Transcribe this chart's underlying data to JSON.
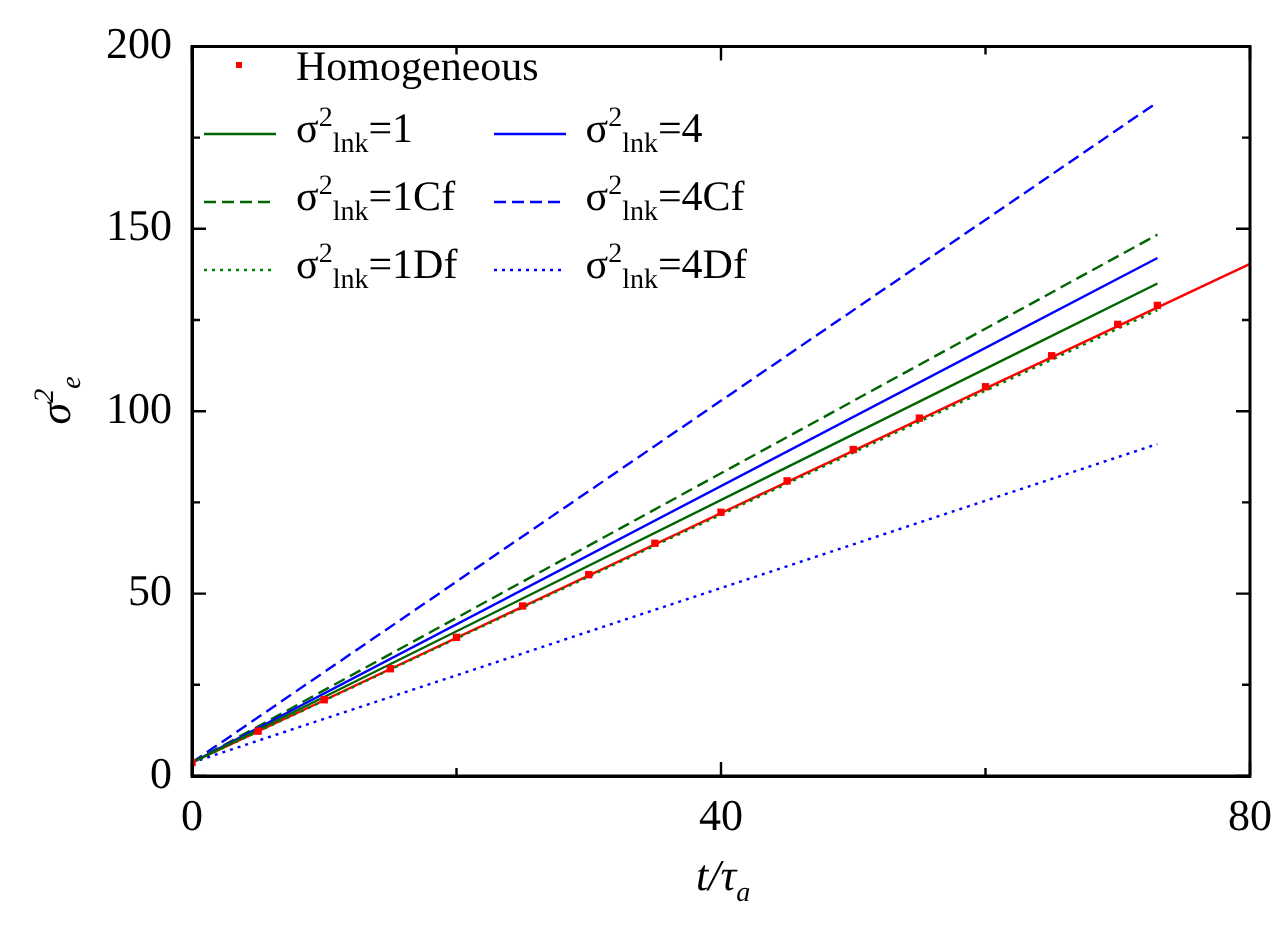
{
  "chart_data": {
    "type": "line",
    "xlabel": "t/τ$_{a}$",
    "ylabel": "σ$^{2}$$_{e}$",
    "xlim": [
      0,
      80
    ],
    "xticks": [
      0,
      {
        "value": 20,
        "label": null
      },
      40,
      {
        "value": 60,
        "label": null
      },
      80
    ],
    "ylim": [
      0,
      200
    ],
    "yticks": [
      0,
      {
        "value": 25,
        "label": null
      },
      50,
      {
        "value": 75,
        "label": null
      },
      100,
      {
        "value": 125,
        "label": null
      },
      150,
      {
        "value": 175,
        "label": null
      },
      200
    ],
    "grid": false,
    "legend": "top left",
    "series": [
      {
        "name": "Homogeneous",
        "type": "scatter",
        "marker": "square",
        "color": "#ff0000",
        "x": [
          0,
          5,
          10,
          15,
          20,
          25,
          30,
          35,
          40,
          45,
          50,
          55,
          60,
          65,
          70,
          73
        ],
        "values": [
          3.7,
          12.3,
          20.9,
          29.4,
          38,
          46.6,
          55.2,
          63.8,
          72.3,
          80.9,
          89.5,
          98.1,
          106.7,
          115.2,
          123.8,
          129
        ]
      },
      {
        "name": "σ$^{2}$$_{lnk}$=1",
        "color": "#006400",
        "line_style": "solid",
        "x": [
          0,
          73
        ],
        "values": [
          3.7,
          135
        ]
      },
      {
        "name": "σ$^{2}$$_{lnk}$=4",
        "color": "#0000ff",
        "line_style": "solid",
        "x": [
          0,
          73
        ],
        "values": [
          3.7,
          142
        ]
      },
      {
        "name": "σ$^{2}$$_{lnk}$=1Cf",
        "color": "#006400",
        "line_style": "dashed",
        "x": [
          0,
          73
        ],
        "values": [
          3.7,
          148.4
        ]
      },
      {
        "name": "σ$^{2}$$_{lnk}$=4Cf",
        "color": "#0000ff",
        "line_style": "dashed",
        "x": [
          0,
          73
        ],
        "values": [
          3.7,
          184.7
        ]
      },
      {
        "name": "σ$^{2}$$_{lnk}$=1Df",
        "color": "#008000",
        "line_style": "dotted",
        "x": [
          0,
          73
        ],
        "values": [
          3.7,
          127.7
        ]
      },
      {
        "name": "σ$^{2}$$_{lnk}$=4Df",
        "color": "#0000ff",
        "line_style": "dotted",
        "x": [
          0,
          73
        ],
        "values": [
          3.7,
          91
        ]
      },
      {
        "type": "line",
        "color": "#ff0000",
        "line_style": "solid",
        "x": [
          0,
          80
        ],
        "values": [
          3.7,
          140.4
        ]
      }
    ]
  }
}
